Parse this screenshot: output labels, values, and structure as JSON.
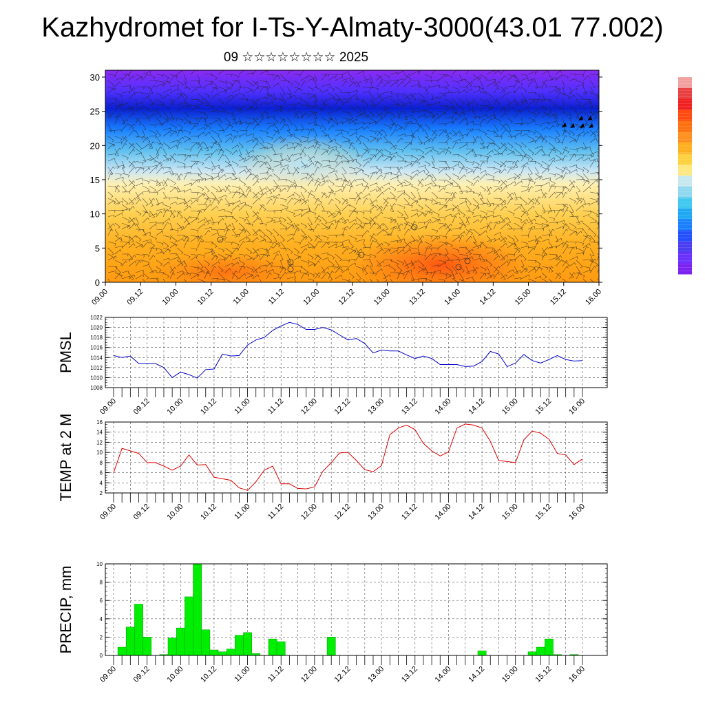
{
  "title": "Kazhydromet for I-Ts-Y-Almaty-3000(43.01 77.002)",
  "subtitle": "09 ☆☆☆☆☆☆☆☆ 2025",
  "colors": {
    "pmsl_line": "#0000cc",
    "temp_line": "#dd0000",
    "precip_bar": "#00ee00",
    "precip_edge": "#009900",
    "grid": "#555555"
  },
  "chart_data": [
    {
      "id": "cross-section",
      "type": "heatmap",
      "description_free": true,
      "x_ticks": [
        "09.00",
        "09.12",
        "10.00",
        "10.12",
        "11.00",
        "11.12",
        "12.00",
        "12.12",
        "13.00",
        "13.12",
        "14.00",
        "14.12",
        "15.00",
        "15.12",
        "16.00"
      ],
      "yticks": [
        0,
        5,
        10,
        15,
        20,
        25,
        30
      ],
      "ylim": [
        0,
        31
      ],
      "colorbar": [
        "#7a22f0",
        "#6a30ff",
        "#4a3cf0",
        "#2250ff",
        "#1a80ff",
        "#20a8f5",
        "#40c8f0",
        "#90d8f0",
        "#c8e8f0",
        "#ffe880",
        "#ffd040",
        "#ffb020",
        "#ff9020",
        "#ff7010",
        "#ff4a10",
        "#f02020",
        "#e84040",
        "#f2a0a0"
      ]
    },
    {
      "id": "pmsl",
      "type": "line",
      "ylabel": "PMSL",
      "ylim": [
        1008,
        1022
      ],
      "yticks": [
        1008,
        1010,
        1012,
        1014,
        1016,
        1018,
        1020,
        1022
      ],
      "x_ticks": [
        "09.00",
        "09.12",
        "10.00",
        "10.12",
        "11.00",
        "11.12",
        "12.00",
        "12.12",
        "13.00",
        "13.12",
        "14.00",
        "14.12",
        "15.00",
        "15.12",
        "16.00"
      ],
      "x_step_hours": 3,
      "series": [
        {
          "values": [
            1014.4,
            1014.0,
            1014.3,
            1012.8,
            1012.8,
            1012.8,
            1012.0,
            1010.0,
            1011.1,
            1010.6,
            1009.9,
            1011.6,
            1011.7,
            1014.7,
            1014.3,
            1014.4,
            1016.5,
            1017.5,
            1018.0,
            1019.4,
            1020.3,
            1021.0,
            1020.6,
            1019.6,
            1019.6,
            1020.0,
            1019.5,
            1018.5,
            1017.5,
            1017.8,
            1016.8,
            1014.9,
            1015.5,
            1015.3,
            1015.3,
            1014.5,
            1013.8,
            1014.3,
            1013.8,
            1012.6,
            1012.6,
            1012.6,
            1012.2,
            1012.3,
            1013.2,
            1015.2,
            1014.7,
            1012.2,
            1012.9,
            1014.6,
            1013.4,
            1012.9,
            1013.6,
            1014.4,
            1013.6,
            1013.3,
            1013.4
          ]
        }
      ]
    },
    {
      "id": "temp",
      "type": "line",
      "ylabel": "TEMP at 2 M",
      "ylim": [
        2,
        16
      ],
      "yticks": [
        2,
        4,
        6,
        8,
        10,
        12,
        14,
        16
      ],
      "x_ticks": [
        "09.00",
        "09.12",
        "10.00",
        "10.12",
        "11.00",
        "11.12",
        "12.00",
        "12.12",
        "13.00",
        "13.12",
        "14.00",
        "14.12",
        "15.00",
        "15.12",
        "16.00"
      ],
      "x_step_hours": 3,
      "series": [
        {
          "values": [
            6.0,
            10.8,
            10.3,
            9.8,
            8.0,
            8.0,
            7.3,
            6.5,
            7.3,
            9.5,
            7.5,
            7.6,
            5.1,
            4.8,
            4.5,
            3.0,
            2.5,
            4.2,
            6.5,
            7.3,
            3.8,
            3.8,
            2.9,
            2.8,
            3.2,
            6.3,
            8.0,
            9.9,
            10.0,
            8.4,
            6.6,
            6.2,
            7.4,
            13.5,
            14.8,
            15.4,
            14.5,
            11.8,
            10.3,
            9.3,
            10.1,
            14.8,
            15.6,
            15.4,
            14.8,
            12.2,
            8.4,
            8.2,
            8.0,
            12.5,
            14.2,
            13.8,
            12.6,
            9.8,
            9.5,
            7.6,
            8.7
          ]
        }
      ]
    },
    {
      "id": "precip",
      "type": "bar",
      "ylabel": "PRECIP, mm",
      "ylim": [
        0,
        10
      ],
      "yticks": [
        0,
        2,
        4,
        6,
        8,
        10
      ],
      "x_ticks": [
        "09.00",
        "09.12",
        "10.00",
        "10.12",
        "11.00",
        "11.12",
        "12.00",
        "12.12",
        "13.00",
        "13.12",
        "14.00",
        "14.12",
        "15.00",
        "15.12",
        "16.00"
      ],
      "x_step_hours": 3,
      "values": [
        0.0,
        0.9,
        3.1,
        5.6,
        2.0,
        0.0,
        0.1,
        1.9,
        3.0,
        6.4,
        10.0,
        2.8,
        0.6,
        0.4,
        0.7,
        2.2,
        2.5,
        0.2,
        0.0,
        1.8,
        1.5,
        0.0,
        0.0,
        0.0,
        0.0,
        0.0,
        2.0,
        0.0,
        0.0,
        0.0,
        0.0,
        0.0,
        0.0,
        0.0,
        0.0,
        0.0,
        0.0,
        0.0,
        0.0,
        0.0,
        0.0,
        0.0,
        0.0,
        0.0,
        0.5,
        0.0,
        0.0,
        0.0,
        0.0,
        0.0,
        0.4,
        0.9,
        1.8,
        0.1,
        0.0,
        0.1,
        0.0
      ]
    }
  ]
}
